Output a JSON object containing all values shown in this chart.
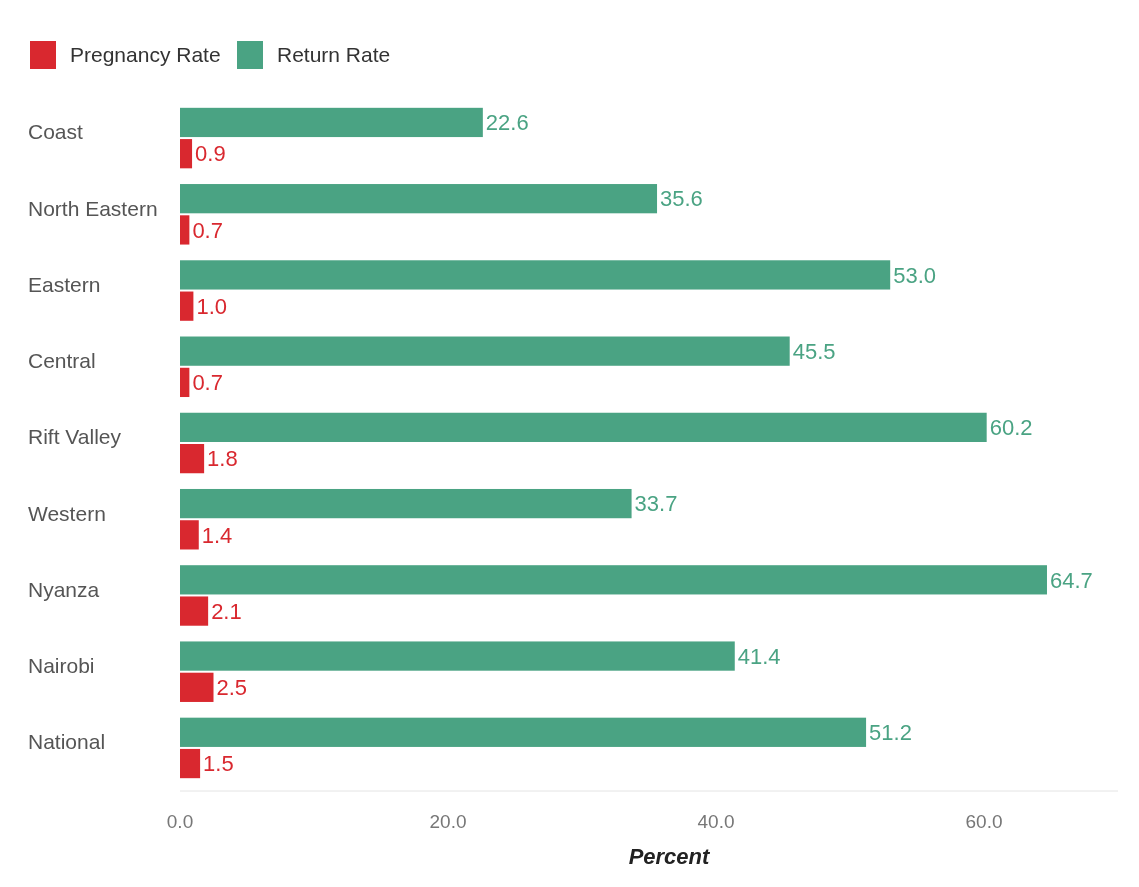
{
  "chart_data": {
    "type": "bar",
    "orientation": "horizontal",
    "xlabel": "Percent",
    "categories": [
      "Coast",
      "North Eastern",
      "Eastern",
      "Central",
      "Rift Valley",
      "Western",
      "Nyanza",
      "Nairobi",
      "National"
    ],
    "series": [
      {
        "name": "Pregnancy Rate",
        "color": "#d9282f",
        "values": [
          0.9,
          0.7,
          1.0,
          0.7,
          1.8,
          1.4,
          2.1,
          2.5,
          1.5
        ],
        "value_labels": [
          "0.9",
          "0.7",
          "1.0",
          "0.7",
          "1.8",
          "1.4",
          "2.1",
          "2.5",
          "1.5"
        ]
      },
      {
        "name": "Return Rate",
        "color": "#4aa383",
        "values": [
          22.6,
          35.6,
          53.0,
          45.5,
          60.2,
          33.7,
          64.7,
          41.4,
          51.2
        ],
        "value_labels": [
          "22.6",
          "35.6",
          "53.0",
          "45.5",
          "60.2",
          "33.7",
          "64.7",
          "41.4",
          "51.2"
        ]
      }
    ],
    "xlim": [
      0,
      70
    ],
    "xticks": [
      {
        "value": 0,
        "label": "0.0"
      },
      {
        "value": 20,
        "label": "20.0"
      },
      {
        "value": 40,
        "label": "40.0"
      },
      {
        "value": 60,
        "label": "60.0"
      }
    ],
    "legend": "top left",
    "grid": false
  }
}
